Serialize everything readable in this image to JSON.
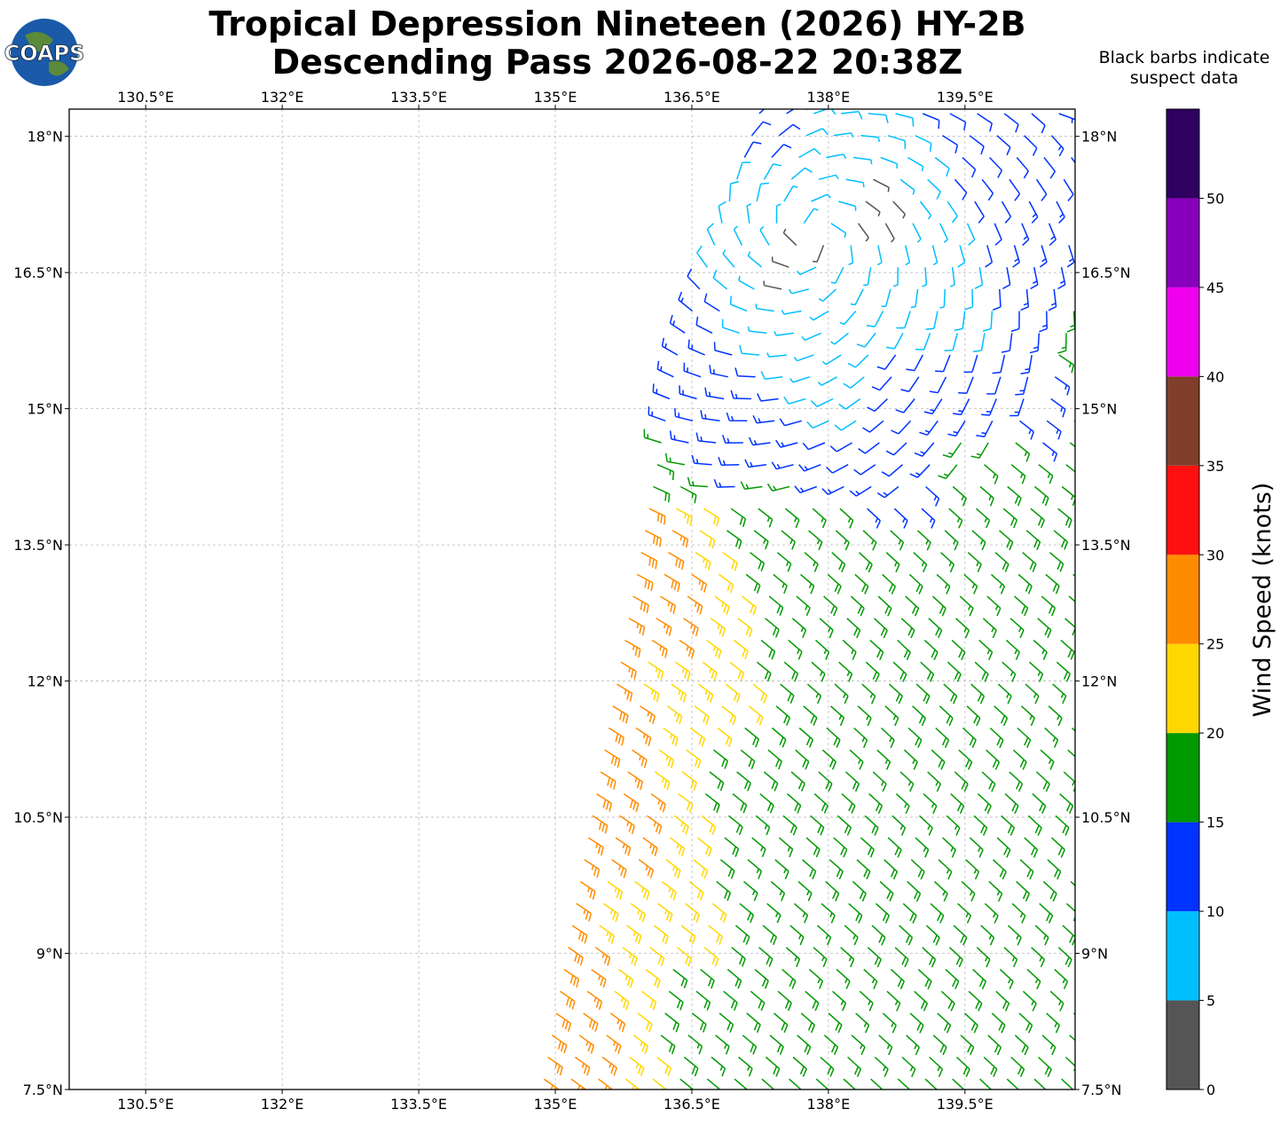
{
  "header": {
    "title": "Tropical Depression Nineteen (2026) HY-2B",
    "subtitle": "Descending Pass 2026-08-22 20:38Z",
    "logo": "COAPS"
  },
  "map": {
    "xlim": [
      129.66,
      140.71
    ],
    "ylim": [
      7.5,
      18.3
    ],
    "xticks": [
      {
        "value": 130.5,
        "label": "130.5°E"
      },
      {
        "value": 132,
        "label": "132°E"
      },
      {
        "value": 133.5,
        "label": "133.5°E"
      },
      {
        "value": 135,
        "label": "135°E"
      },
      {
        "value": 136.5,
        "label": "136.5°E"
      },
      {
        "value": 138,
        "label": "138°E"
      },
      {
        "value": 139.5,
        "label": "139.5°E"
      }
    ],
    "yticks": [
      {
        "value": 7.5,
        "label": "7.5°N"
      },
      {
        "value": 9,
        "label": "9°N"
      },
      {
        "value": 10.5,
        "label": "10.5°N"
      },
      {
        "value": 12,
        "label": "12°N"
      },
      {
        "value": 13.5,
        "label": "13.5°N"
      },
      {
        "value": 15,
        "label": "15°N"
      },
      {
        "value": 16.5,
        "label": "16.5°N"
      },
      {
        "value": 18,
        "label": "18°N"
      }
    ],
    "grid": true
  },
  "colorbar": {
    "label": "Wind Speed (knots)",
    "note": "Black barbs indicate suspect data",
    "ylim": [
      0,
      55
    ],
    "ticks": [
      0,
      5,
      10,
      15,
      20,
      25,
      30,
      35,
      40,
      45,
      50
    ],
    "bins": [
      0,
      5,
      10,
      15,
      20,
      25,
      30,
      35,
      40,
      45,
      50,
      55
    ],
    "colors": [
      "#555555",
      "#00bfff",
      "#0033ff",
      "#009900",
      "#ffd700",
      "#ff8c00",
      "#ff1010",
      "#7f3f2a",
      "#ee00ee",
      "#8800bb",
      "#2e0060"
    ]
  }
}
